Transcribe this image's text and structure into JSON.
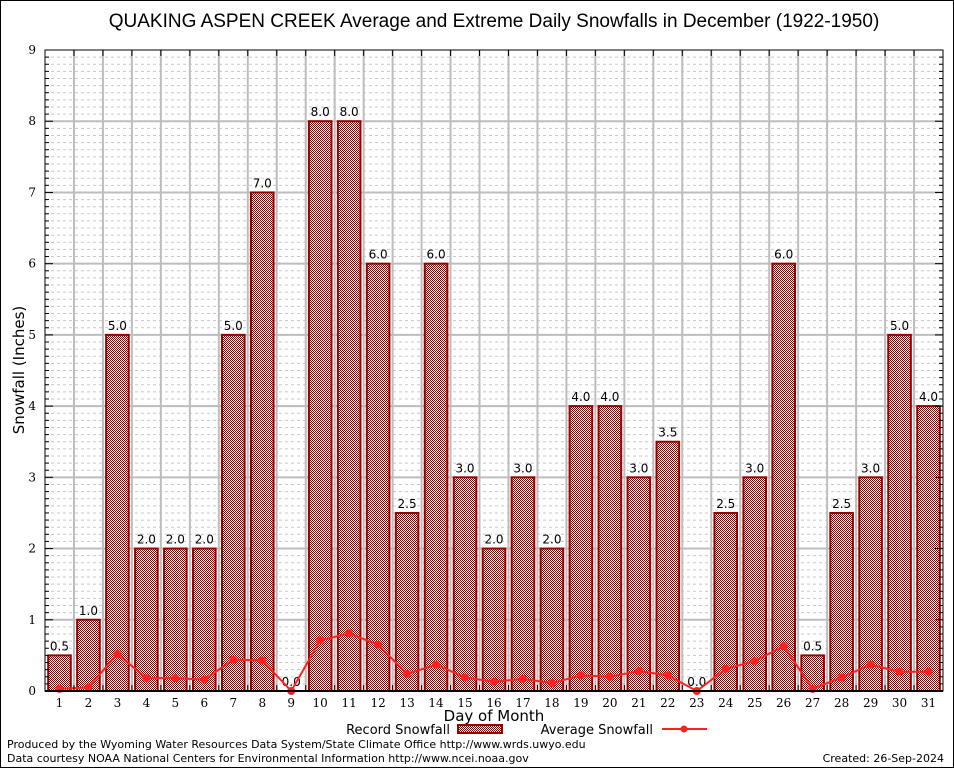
{
  "chart_data": {
    "type": "bar",
    "title": "QUAKING ASPEN CREEK Average and Extreme Daily Snowfalls in December (1922-1950)",
    "xlabel": "Day of Month",
    "ylabel": "Snowfall (Inches)",
    "ylim": [
      0,
      9
    ],
    "yticks": [
      "0",
      "1",
      "2",
      "3",
      "4",
      "5",
      "6",
      "7",
      "8",
      "9"
    ],
    "grid": true,
    "categories": [
      "1",
      "2",
      "3",
      "4",
      "5",
      "6",
      "7",
      "8",
      "9",
      "10",
      "11",
      "12",
      "13",
      "14",
      "15",
      "16",
      "17",
      "18",
      "19",
      "20",
      "21",
      "22",
      "23",
      "24",
      "25",
      "26",
      "27",
      "28",
      "29",
      "30",
      "31"
    ],
    "series": [
      {
        "name": "Record Snowfall",
        "kind": "bar",
        "color": "#990000",
        "values": [
          0.5,
          1.0,
          5.0,
          2.0,
          2.0,
          2.0,
          5.0,
          7.0,
          0.0,
          8.0,
          8.0,
          6.0,
          2.5,
          6.0,
          3.0,
          2.0,
          3.0,
          2.0,
          4.0,
          4.0,
          3.0,
          3.5,
          0.0,
          2.5,
          3.0,
          6.0,
          0.5,
          2.5,
          3.0,
          5.0,
          4.0
        ],
        "labels": [
          "0.5",
          "1.0",
          "5.0",
          "2.0",
          "2.0",
          "2.0",
          "5.0",
          "7.0",
          "0.0",
          "8.0",
          "8.0",
          "6.0",
          "2.5",
          "6.0",
          "3.0",
          "2.0",
          "3.0",
          "2.0",
          "4.0",
          "4.0",
          "3.0",
          "3.5",
          "0.0",
          "2.5",
          "3.0",
          "6.0",
          "0.5",
          "2.5",
          "3.0",
          "5.0",
          "4.0"
        ]
      },
      {
        "name": "Average Snowfall",
        "kind": "line",
        "color": "#ff2020",
        "values": [
          0.03,
          0.05,
          0.52,
          0.18,
          0.18,
          0.16,
          0.44,
          0.43,
          0.0,
          0.71,
          0.81,
          0.65,
          0.24,
          0.37,
          0.19,
          0.13,
          0.17,
          0.11,
          0.22,
          0.2,
          0.28,
          0.22,
          0.0,
          0.31,
          0.42,
          0.63,
          0.03,
          0.19,
          0.37,
          0.27,
          0.27
        ]
      }
    ],
    "legend": {
      "placement": "bottom",
      "items": [
        "Record Snowfall",
        "Average Snowfall"
      ]
    }
  },
  "footer": {
    "line1": "Produced by the Wyoming Water Resources Data System/State Climate Office http://www.wrds.uwyo.edu",
    "line2": "Data courtesy NOAA National Centers for Environmental Information http://www.ncei.noaa.gov",
    "created": "Created:  26-Sep-2024"
  }
}
